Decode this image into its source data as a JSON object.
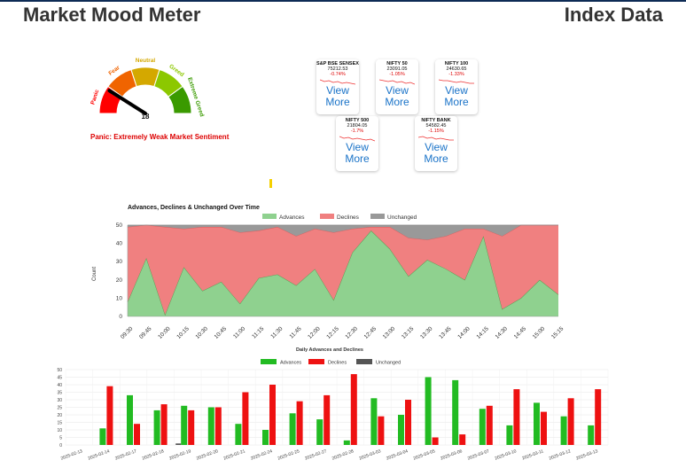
{
  "header": {
    "left_title": "Market Mood Meter",
    "right_title": "Index Data"
  },
  "gauge": {
    "labels": [
      "Panic",
      "Fear",
      "Neutral",
      "Greed",
      "Extreme Greed"
    ],
    "value": 18,
    "range": [
      0,
      100
    ],
    "colors": [
      "#ff0000",
      "#f06400",
      "#d4a800",
      "#8cc800",
      "#3a9a00"
    ],
    "sentiment": "Panic: Extremely Weak Market Sentiment"
  },
  "index_cards": [
    {
      "name": "S&P BSE SENSEX",
      "value": "75212.53",
      "change": "-0.74%",
      "action": "View More"
    },
    {
      "name": "NIFTY 50",
      "value": "23091.05",
      "change": "-1.05%",
      "action": "View More"
    },
    {
      "name": "NIFTY 100",
      "value": "24630.65",
      "change": "-1.33%",
      "action": "View More"
    },
    {
      "name": "NIFTY 500",
      "value": "21804.05",
      "change": "-1.7%",
      "action": "View More"
    },
    {
      "name": "NIFTY BANK",
      "value": "54582.45",
      "change": "-1.15%",
      "action": "View More"
    }
  ],
  "chart_data": [
    {
      "type": "area",
      "title": "Advances, Declines & Unchanged Over Time",
      "xlabel": "",
      "ylabel": "Count",
      "ylim": [
        0,
        50
      ],
      "yticks": [
        0,
        10,
        20,
        30,
        40,
        50
      ],
      "stacked": true,
      "grid": false,
      "legend": "top",
      "x": [
        "09:30",
        "09:45",
        "10:00",
        "10:15",
        "10:30",
        "10:45",
        "11:00",
        "11:15",
        "11:30",
        "11:45",
        "12:00",
        "12:15",
        "12:30",
        "12:45",
        "13:00",
        "13:15",
        "13:30",
        "13:45",
        "14:00",
        "14:15",
        "14:30",
        "14:45",
        "15:00",
        "15:15"
      ],
      "series": [
        {
          "name": "Advances",
          "color": "#8fd18f",
          "values": [
            8,
            32,
            1,
            27,
            14,
            19,
            7,
            21,
            23,
            17,
            26,
            9,
            35,
            47,
            37,
            22,
            31,
            26,
            20,
            44,
            4,
            10,
            20,
            12
          ]
        },
        {
          "name": "Declines",
          "color": "#f08080",
          "values": [
            41,
            18,
            48,
            21,
            35,
            30,
            39,
            26,
            26,
            27,
            22,
            37,
            13,
            2,
            12,
            21,
            11,
            18,
            28,
            4,
            40,
            40,
            30,
            38
          ]
        },
        {
          "name": "Unchanged",
          "color": "#999999",
          "values": [
            1,
            0,
            1,
            2,
            1,
            1,
            4,
            3,
            1,
            6,
            2,
            4,
            2,
            1,
            1,
            7,
            8,
            6,
            2,
            2,
            6,
            0,
            0,
            0
          ]
        }
      ]
    },
    {
      "type": "bar",
      "title": "Daily Advances and Declines",
      "xlabel": "",
      "ylabel": "",
      "ylim": [
        0,
        50
      ],
      "yticks": [
        0,
        5,
        10,
        15,
        20,
        25,
        30,
        35,
        40,
        45,
        50
      ],
      "grid": true,
      "legend": "top",
      "categories": [
        "2025-02-13",
        "2025-02-14",
        "2025-02-17",
        "2025-02-18",
        "2025-02-19",
        "2025-02-20",
        "2025-02-21",
        "2025-02-24",
        "2025-02-25",
        "2025-02-27",
        "2025-02-28",
        "2025-03-03",
        "2025-03-04",
        "2025-03-05",
        "2025-03-06",
        "2025-03-07",
        "2025-03-10",
        "2025-03-11",
        "2025-03-12",
        "2025-03-13"
      ],
      "series": [
        {
          "name": "Advances",
          "color": "#22bb22",
          "values": [
            0,
            11,
            33,
            23,
            26,
            25,
            14,
            10,
            21,
            17,
            3,
            31,
            20,
            45,
            43,
            24,
            13,
            28,
            19,
            13
          ]
        },
        {
          "name": "Declines",
          "color": "#ee1111",
          "values": [
            0,
            39,
            14,
            27,
            23,
            25,
            35,
            40,
            29,
            33,
            47,
            19,
            30,
            5,
            7,
            26,
            37,
            22,
            31,
            37
          ]
        },
        {
          "name": "Unchanged",
          "color": "#555555",
          "values": [
            0,
            0,
            0,
            0,
            1,
            0,
            0,
            0,
            0,
            0,
            0,
            0,
            0,
            0,
            0,
            0,
            0,
            0,
            0,
            0
          ]
        }
      ]
    }
  ]
}
